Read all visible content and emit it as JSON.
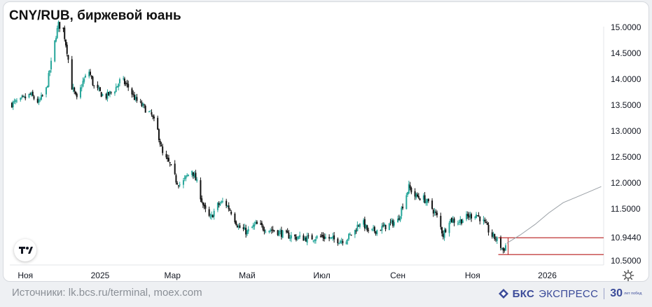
{
  "header": {
    "title": "CNY/RUB, биржевой юань"
  },
  "footer": {
    "source": "Источники: lk.bcs.ru/terminal, moex.com",
    "brand_name": "БКС",
    "brand_sub": "ЭКСПРЕСС",
    "anniv_number": "30",
    "anniv_text": "лет побед"
  },
  "colors": {
    "up": "#26a69a",
    "down": "#111111",
    "level": "#b71c1c",
    "grid": "#e6e8eb",
    "forecast": "#9aa0a6"
  },
  "icons": {
    "logo": "tradingview-logo-icon",
    "settings": "gear-icon",
    "brand": "bcs-logo-icon"
  },
  "chart_data": {
    "type": "candlestick",
    "title": "CNY/RUB, биржевой юань",
    "xlabel": "",
    "ylabel": "",
    "ylim": [
      10.42,
      15.12
    ],
    "x_ticks": [
      "Ноя",
      "2025",
      "Мар",
      "Май",
      "Июл",
      "Сен",
      "Ноя",
      "2026"
    ],
    "y_ticks": [
      "15.0000",
      "14.5000",
      "14.0000",
      "13.5000",
      "13.0000",
      "12.5000",
      "12.0000",
      "11.5000",
      "10.9440",
      "10.5000"
    ],
    "anchors": [
      [
        "2024-10-20",
        13.52
      ],
      [
        "2024-10-28",
        13.58
      ],
      [
        "2024-11-05",
        13.7
      ],
      [
        "2024-11-12",
        13.55
      ],
      [
        "2024-11-18",
        13.8
      ],
      [
        "2024-11-22",
        14.3
      ],
      [
        "2024-11-26",
        14.85
      ],
      [
        "2024-11-28",
        15.05
      ],
      [
        "2024-12-02",
        14.95
      ],
      [
        "2024-12-05",
        14.55
      ],
      [
        "2024-12-09",
        13.85
      ],
      [
        "2024-12-13",
        13.6
      ],
      [
        "2024-12-18",
        13.95
      ],
      [
        "2024-12-23",
        14.15
      ],
      [
        "2024-12-27",
        13.85
      ],
      [
        "2025-01-05",
        13.65
      ],
      [
        "2025-01-13",
        13.8
      ],
      [
        "2025-01-18",
        14.0
      ],
      [
        "2025-01-24",
        13.85
      ],
      [
        "2025-01-30",
        13.6
      ],
      [
        "2025-02-06",
        13.45
      ],
      [
        "2025-02-12",
        13.3
      ],
      [
        "2025-02-17",
        13.0
      ],
      [
        "2025-02-21",
        12.55
      ],
      [
        "2025-02-27",
        12.35
      ],
      [
        "2025-03-04",
        12.05
      ],
      [
        "2025-03-08",
        11.95
      ],
      [
        "2025-03-12",
        12.1
      ],
      [
        "2025-03-17",
        12.25
      ],
      [
        "2025-03-21",
        12.0
      ],
      [
        "2025-03-27",
        11.5
      ],
      [
        "2025-04-01",
        11.3
      ],
      [
        "2025-04-06",
        11.55
      ],
      [
        "2025-04-12",
        11.65
      ],
      [
        "2025-04-18",
        11.45
      ],
      [
        "2025-04-24",
        11.15
      ],
      [
        "2025-05-01",
        11.05
      ],
      [
        "2025-05-08",
        11.2
      ],
      [
        "2025-05-16",
        11.12
      ],
      [
        "2025-05-24",
        11.08
      ],
      [
        "2025-06-01",
        11.0
      ],
      [
        "2025-06-10",
        10.95
      ],
      [
        "2025-06-20",
        10.93
      ],
      [
        "2025-07-01",
        10.97
      ],
      [
        "2025-07-12",
        10.9
      ],
      [
        "2025-07-20",
        10.9
      ],
      [
        "2025-07-28",
        11.08
      ],
      [
        "2025-08-02",
        11.3
      ],
      [
        "2025-08-08",
        11.05
      ],
      [
        "2025-08-16",
        11.1
      ],
      [
        "2025-08-25",
        11.2
      ],
      [
        "2025-09-01",
        11.28
      ],
      [
        "2025-09-06",
        11.65
      ],
      [
        "2025-09-10",
        11.92
      ],
      [
        "2025-09-15",
        11.75
      ],
      [
        "2025-09-22",
        11.7
      ],
      [
        "2025-09-28",
        11.55
      ],
      [
        "2025-10-03",
        11.35
      ],
      [
        "2025-10-08",
        11.0
      ],
      [
        "2025-10-13",
        11.3
      ],
      [
        "2025-10-20",
        11.25
      ],
      [
        "2025-10-28",
        11.35
      ],
      [
        "2025-11-04",
        11.4
      ],
      [
        "2025-11-10",
        11.25
      ],
      [
        "2025-11-16",
        11.0
      ],
      [
        "2025-11-21",
        10.9
      ],
      [
        "2025-11-26",
        10.7
      ],
      [
        "2025-11-29",
        10.84
      ]
    ],
    "levels": [
      10.944,
      10.62
    ],
    "forecast": [
      [
        "2025-11-29",
        10.84
      ],
      [
        "2025-12-10",
        11.0
      ],
      [
        "2025-12-22",
        11.2
      ],
      [
        "2026-01-02",
        11.42
      ],
      [
        "2026-01-14",
        11.62
      ],
      [
        "2026-01-26",
        11.74
      ],
      [
        "2026-02-05",
        11.84
      ],
      [
        "2026-02-14",
        11.93
      ]
    ],
    "grid": false,
    "legend": "none"
  }
}
